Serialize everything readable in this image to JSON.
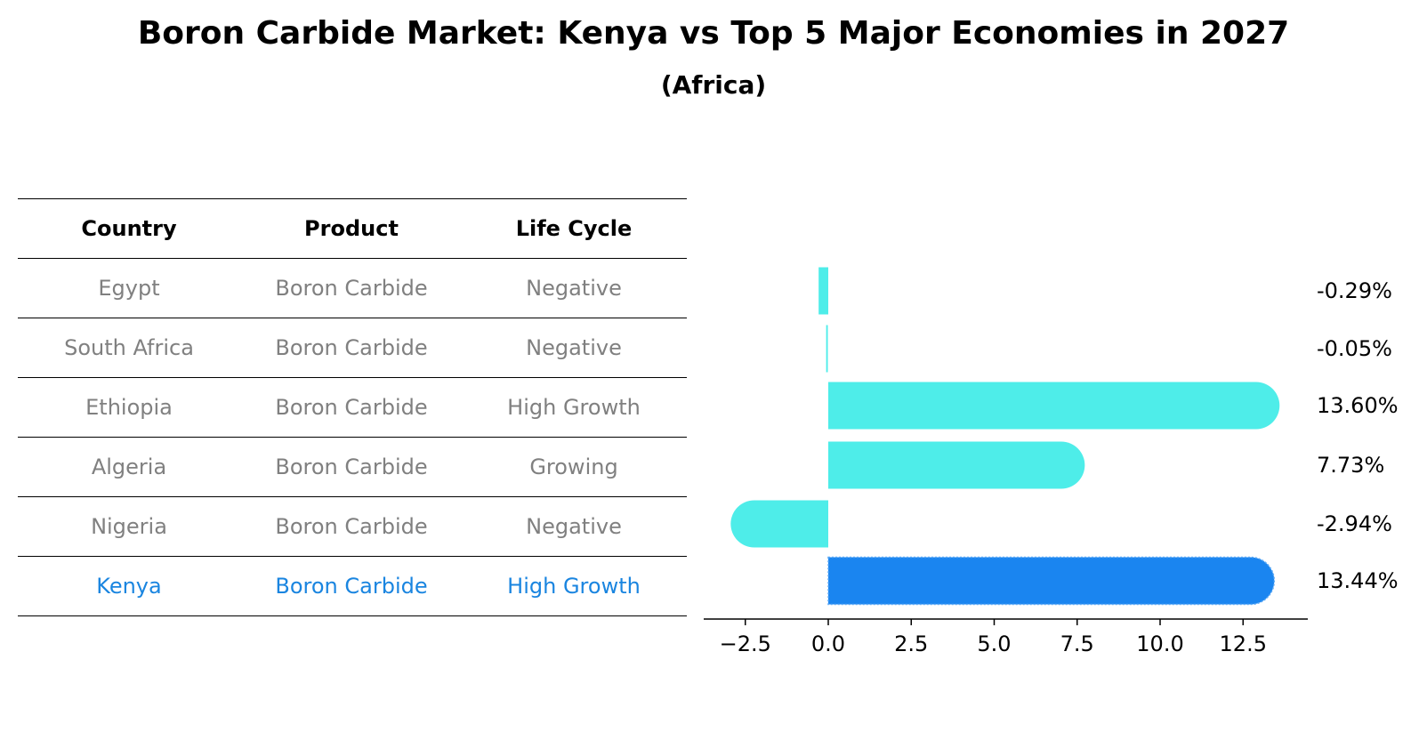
{
  "title": "Boron Carbide Market: Kenya vs Top 5 Major Economies in 2027",
  "subtitle": "(Africa)",
  "table": {
    "headers": [
      "Country",
      "Product",
      "Life Cycle"
    ],
    "rows": [
      {
        "country": "Egypt",
        "product": "Boron Carbide",
        "life_cycle": "Negative"
      },
      {
        "country": "South Africa",
        "product": "Boron Carbide",
        "life_cycle": "Negative"
      },
      {
        "country": "Ethiopia",
        "product": "Boron Carbide",
        "life_cycle": "High Growth"
      },
      {
        "country": "Algeria",
        "product": "Boron Carbide",
        "life_cycle": "Growing"
      },
      {
        "country": "Nigeria",
        "product": "Boron Carbide",
        "life_cycle": "Negative"
      },
      {
        "country": "Kenya",
        "product": "Boron Carbide",
        "life_cycle": "High Growth"
      }
    ]
  },
  "chart_data": {
    "type": "bar",
    "orientation": "horizontal",
    "categories": [
      "Egypt",
      "South Africa",
      "Ethiopia",
      "Algeria",
      "Nigeria",
      "Kenya"
    ],
    "values": [
      -0.29,
      -0.05,
      13.6,
      7.73,
      -2.94,
      13.44
    ],
    "value_labels": [
      "-0.29%",
      "-0.05%",
      "13.60%",
      "7.73%",
      "-2.94%",
      "13.44%"
    ],
    "highlight": "Kenya",
    "xlim": [
      -3.75,
      14.5
    ],
    "xticks": [
      -2.5,
      0.0,
      2.5,
      5.0,
      7.5,
      10.0,
      12.5
    ],
    "xtick_labels": [
      "−2.5",
      "0.0",
      "2.5",
      "5.0",
      "7.5",
      "10.0",
      "12.5"
    ],
    "colors": {
      "bar": "#4eede9",
      "highlight_bar": "#1a85f0",
      "label_text": "#000000"
    }
  }
}
